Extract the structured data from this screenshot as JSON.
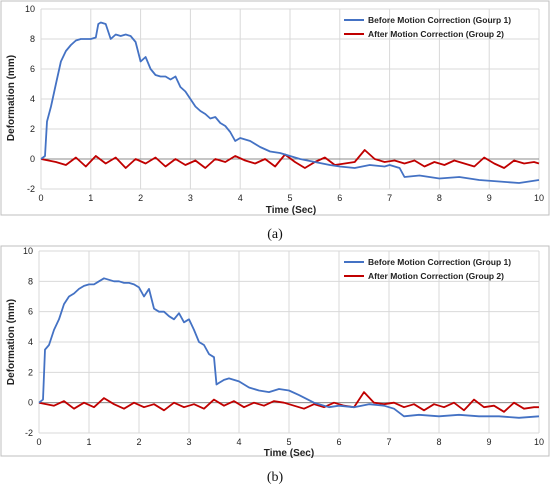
{
  "chart_data": [
    {
      "type": "line",
      "panel_label": "(a)",
      "xlabel": "Time (Sec)",
      "ylabel": "Deformation (mm)",
      "xlim": [
        0,
        10
      ],
      "ylim": [
        -2,
        10
      ],
      "xticks": [
        "0",
        "1",
        "2",
        "3",
        "4",
        "5",
        "6",
        "7",
        "8",
        "9",
        "10"
      ],
      "yticks": [
        "-2",
        "0",
        "2",
        "4",
        "6",
        "8",
        "10"
      ],
      "grid": true,
      "legend_position": "top-right",
      "series": [
        {
          "name": "Before Motion Correction (Gourp 1)",
          "color": "#4472C4",
          "x": [
            0,
            0.08,
            0.12,
            0.2,
            0.3,
            0.4,
            0.5,
            0.6,
            0.7,
            0.8,
            0.9,
            1.0,
            1.1,
            1.15,
            1.2,
            1.3,
            1.4,
            1.5,
            1.6,
            1.7,
            1.8,
            1.9,
            2.0,
            2.1,
            2.2,
            2.3,
            2.4,
            2.5,
            2.6,
            2.7,
            2.8,
            2.9,
            3.0,
            3.1,
            3.2,
            3.3,
            3.4,
            3.5,
            3.6,
            3.7,
            3.8,
            3.9,
            4.0,
            4.2,
            4.4,
            4.6,
            4.8,
            5.0,
            5.2,
            5.5,
            5.8,
            6.0,
            6.3,
            6.6,
            6.9,
            7.0,
            7.2,
            7.3,
            7.6,
            8.0,
            8.4,
            8.8,
            9.2,
            9.6,
            10.0
          ],
          "y": [
            0,
            0.2,
            2.5,
            3.5,
            5.0,
            6.5,
            7.2,
            7.6,
            7.9,
            8.0,
            8.0,
            8.0,
            8.1,
            9.0,
            9.1,
            9.0,
            8.0,
            8.3,
            8.2,
            8.3,
            8.2,
            7.8,
            6.5,
            6.8,
            6.0,
            5.6,
            5.5,
            5.5,
            5.3,
            5.5,
            4.8,
            4.5,
            4.0,
            3.5,
            3.2,
            3.0,
            2.7,
            2.8,
            2.4,
            2.2,
            1.8,
            1.2,
            1.4,
            1.2,
            0.8,
            0.5,
            0.4,
            0.2,
            0.0,
            -0.2,
            -0.4,
            -0.5,
            -0.6,
            -0.4,
            -0.5,
            -0.4,
            -0.6,
            -1.2,
            -1.1,
            -1.3,
            -1.2,
            -1.4,
            -1.5,
            -1.6,
            -1.4
          ]
        },
        {
          "name": "After Motion Correction (Group 2)",
          "color": "#C00000",
          "x": [
            0,
            0.3,
            0.5,
            0.7,
            0.9,
            1.1,
            1.3,
            1.5,
            1.7,
            1.9,
            2.1,
            2.3,
            2.5,
            2.7,
            2.9,
            3.1,
            3.3,
            3.5,
            3.7,
            3.9,
            4.1,
            4.3,
            4.5,
            4.7,
            4.9,
            5.1,
            5.3,
            5.5,
            5.7,
            5.9,
            6.1,
            6.3,
            6.5,
            6.7,
            6.9,
            7.1,
            7.3,
            7.5,
            7.7,
            7.9,
            8.1,
            8.3,
            8.5,
            8.7,
            8.9,
            9.1,
            9.3,
            9.5,
            9.7,
            9.9,
            10.0
          ],
          "y": [
            0,
            -0.2,
            -0.4,
            0.1,
            -0.5,
            0.2,
            -0.3,
            0.1,
            -0.6,
            0.0,
            -0.3,
            0.1,
            -0.5,
            0.0,
            -0.4,
            -0.1,
            -0.6,
            0.0,
            -0.2,
            0.2,
            -0.1,
            -0.3,
            0.0,
            -0.5,
            0.3,
            -0.2,
            -0.6,
            -0.2,
            0.1,
            -0.4,
            -0.3,
            -0.2,
            0.6,
            0.0,
            -0.2,
            -0.1,
            -0.3,
            -0.1,
            -0.5,
            -0.2,
            -0.4,
            -0.1,
            -0.3,
            -0.5,
            0.1,
            -0.3,
            -0.6,
            -0.1,
            -0.3,
            -0.2,
            -0.3
          ]
        }
      ]
    },
    {
      "type": "line",
      "panel_label": "(b)",
      "xlabel": "Time (Sec)",
      "ylabel": "Deformation (mm)",
      "xlim": [
        0,
        10
      ],
      "ylim": [
        -2,
        10
      ],
      "xticks": [
        "0",
        "1",
        "2",
        "3",
        "4",
        "5",
        "6",
        "7",
        "8",
        "9",
        "10"
      ],
      "yticks": [
        "-2",
        "0",
        "2",
        "4",
        "6",
        "8",
        "10"
      ],
      "grid": true,
      "legend_position": "top-right",
      "series": [
        {
          "name": "Before Motion Correction (Group 1)",
          "color": "#4472C4",
          "x": [
            0,
            0.08,
            0.12,
            0.2,
            0.3,
            0.4,
            0.5,
            0.6,
            0.7,
            0.8,
            0.9,
            1.0,
            1.1,
            1.2,
            1.3,
            1.4,
            1.5,
            1.6,
            1.7,
            1.8,
            1.9,
            2.0,
            2.1,
            2.2,
            2.3,
            2.4,
            2.5,
            2.6,
            2.7,
            2.8,
            2.9,
            3.0,
            3.1,
            3.2,
            3.3,
            3.4,
            3.5,
            3.55,
            3.6,
            3.7,
            3.8,
            4.0,
            4.2,
            4.4,
            4.6,
            4.8,
            5.0,
            5.2,
            5.5,
            5.8,
            6.0,
            6.3,
            6.6,
            6.9,
            7.1,
            7.3,
            7.6,
            8.0,
            8.4,
            8.8,
            9.2,
            9.6,
            10.0
          ],
          "y": [
            0,
            0.2,
            3.5,
            3.8,
            4.8,
            5.5,
            6.5,
            7.0,
            7.2,
            7.5,
            7.7,
            7.8,
            7.8,
            8.0,
            8.2,
            8.1,
            8.0,
            8.0,
            7.9,
            7.9,
            7.8,
            7.6,
            7.0,
            7.5,
            6.2,
            6.0,
            6.0,
            5.7,
            5.5,
            5.9,
            5.3,
            5.5,
            4.8,
            4.0,
            3.8,
            3.2,
            3.0,
            1.2,
            1.3,
            1.5,
            1.6,
            1.4,
            1.0,
            0.8,
            0.7,
            0.9,
            0.8,
            0.5,
            0.0,
            -0.3,
            -0.2,
            -0.3,
            -0.1,
            -0.2,
            -0.4,
            -0.9,
            -0.8,
            -0.9,
            -0.8,
            -0.9,
            -0.9,
            -1.0,
            -0.9
          ]
        },
        {
          "name": "After Motion Correction (Group 2)",
          "color": "#C00000",
          "x": [
            0,
            0.3,
            0.5,
            0.7,
            0.9,
            1.1,
            1.3,
            1.5,
            1.7,
            1.9,
            2.1,
            2.3,
            2.5,
            2.7,
            2.9,
            3.1,
            3.3,
            3.5,
            3.7,
            3.9,
            4.1,
            4.3,
            4.5,
            4.7,
            4.9,
            5.1,
            5.3,
            5.5,
            5.7,
            5.9,
            6.1,
            6.3,
            6.5,
            6.7,
            6.9,
            7.1,
            7.3,
            7.5,
            7.7,
            7.9,
            8.1,
            8.3,
            8.5,
            8.7,
            8.9,
            9.1,
            9.3,
            9.5,
            9.7,
            9.9,
            10.0
          ],
          "y": [
            0,
            -0.2,
            0.1,
            -0.4,
            0.0,
            -0.3,
            0.3,
            -0.1,
            -0.4,
            0.0,
            -0.3,
            -0.1,
            -0.5,
            0.0,
            -0.3,
            -0.1,
            -0.4,
            0.2,
            -0.2,
            0.1,
            -0.3,
            0.0,
            -0.2,
            0.1,
            0.0,
            -0.2,
            -0.4,
            -0.1,
            -0.3,
            0.0,
            -0.2,
            -0.3,
            0.7,
            0.0,
            -0.1,
            0.0,
            -0.3,
            -0.1,
            -0.5,
            -0.1,
            -0.3,
            0.0,
            -0.5,
            0.2,
            -0.3,
            -0.2,
            -0.6,
            0.0,
            -0.4,
            -0.3,
            -0.3
          ]
        }
      ]
    }
  ]
}
